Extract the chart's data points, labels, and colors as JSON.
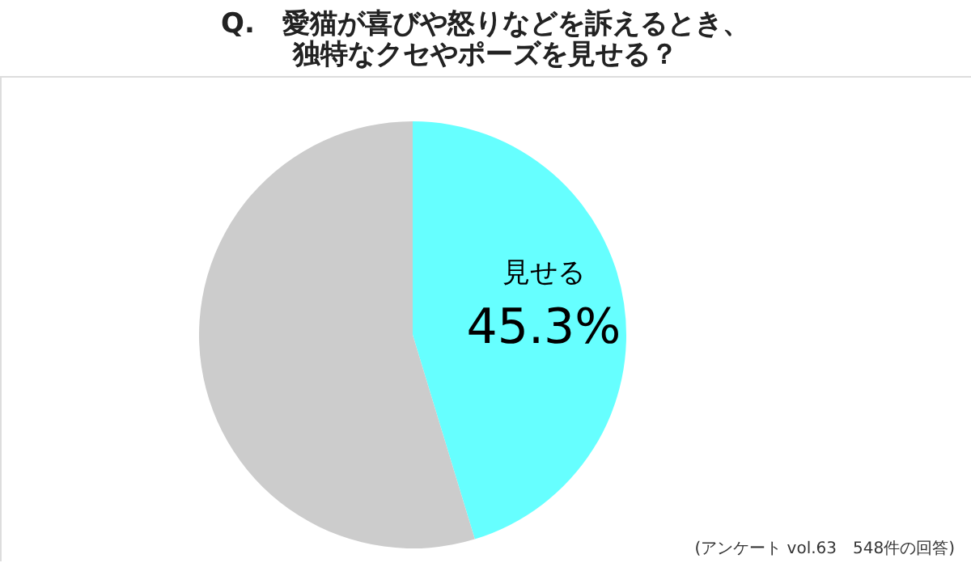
{
  "chart_data": {
    "type": "pie",
    "title": [
      "Q.　愛猫が喜びや怒りなどを訴えるとき、",
      "独特なクセやポーズを見せる？"
    ],
    "categories": [
      "見せる",
      null
    ],
    "values": [
      45.3,
      54.7
    ],
    "colors": [
      "#66ffff",
      "#cccccc"
    ],
    "value_labels": [
      "45.3%",
      null
    ],
    "legend": false,
    "annotations": [
      "(アンケート vol.63　548件の回答)"
    ]
  }
}
